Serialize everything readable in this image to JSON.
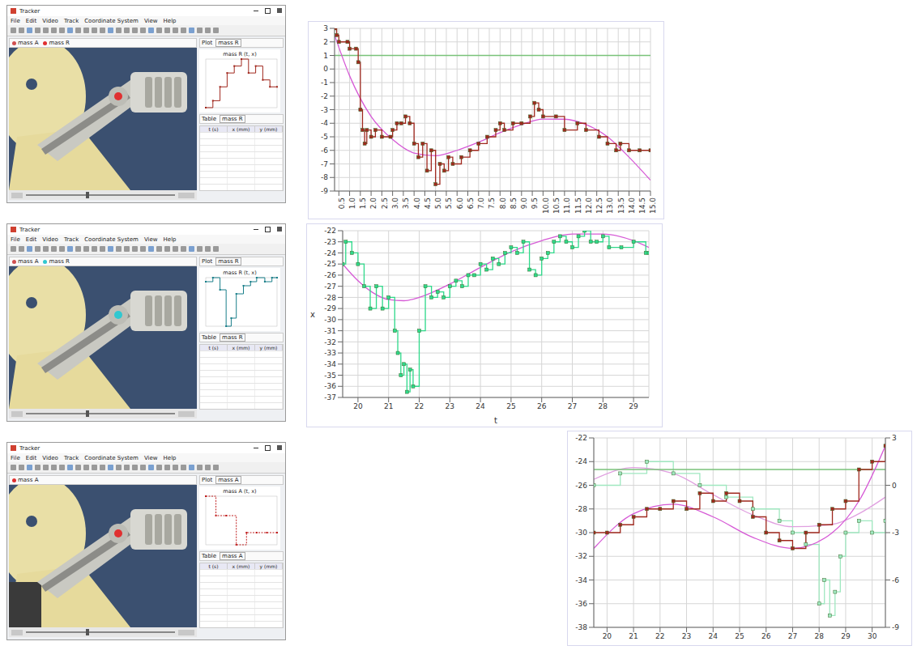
{
  "screenshots": [
    {
      "window_title": "Tracker",
      "menu": [
        "File",
        "Edit",
        "Video",
        "Track",
        "Coordinate System",
        "View",
        "Help"
      ],
      "tracks": [
        "mass A",
        "mass R"
      ],
      "plot_label": "Plot",
      "plot_title": "mass R (t, x)",
      "table_label": "Table",
      "table_track": "mass R",
      "columns": [
        "t (s)",
        "x (mm)",
        "y (mm)"
      ],
      "marker_color": "#e03030",
      "mini_plot": {
        "x": [
          0,
          1,
          2,
          3,
          4,
          5,
          6,
          7,
          8,
          9,
          10
        ],
        "values": [
          -8,
          -7,
          -5,
          -3,
          -2,
          -1,
          -3,
          -2,
          -4,
          -5,
          -5
        ],
        "color": "#a0281e",
        "line_style": "step"
      }
    },
    {
      "window_title": "Tracker",
      "menu": [
        "File",
        "Edit",
        "Video",
        "Track",
        "Coordinate System",
        "View",
        "Help"
      ],
      "tracks": [
        "mass A",
        "mass R"
      ],
      "plot_label": "Plot",
      "plot_title": "mass R (t, x)",
      "table_label": "Table",
      "table_track": "mass R",
      "columns": [
        "t (s)",
        "x (mm)",
        "y (mm)"
      ],
      "marker_color": "#30c8d0",
      "mini_plot": {
        "x": [
          0,
          0.7,
          1.4,
          2,
          2.5,
          3,
          3.7,
          4.4,
          5,
          5.8,
          6.5,
          7
        ],
        "values": [
          -24,
          -23,
          -26,
          -35,
          -33,
          -27,
          -25,
          -24,
          -23,
          -24,
          -23,
          -23
        ],
        "color": "#1a7f8a",
        "line_style": "step"
      }
    },
    {
      "window_title": "Tracker",
      "menu": [
        "File",
        "Edit",
        "Video",
        "Track",
        "Coordinate System",
        "View",
        "Help"
      ],
      "tracks": [
        "mass A"
      ],
      "plot_label": "Plot",
      "plot_title": "mass A (t, x)",
      "table_label": "Table",
      "table_track": "mass A",
      "columns": [
        "t (s)",
        "x (mm)",
        "y (mm)"
      ],
      "marker_color": "#e03030",
      "mini_plot": {
        "x": [
          0,
          0.1,
          0.2,
          0.3,
          0.4,
          0.5,
          0.6,
          0.7
        ],
        "values": [
          1,
          0.6,
          0.6,
          0,
          0.25,
          0.25,
          0.25,
          0.25
        ],
        "color": "#c02020",
        "line_style": "dashed"
      }
    }
  ],
  "chart_data": [
    {
      "type": "line",
      "grid": true,
      "xlim": [
        0.3,
        15
      ],
      "xticks": [
        0.5,
        {
          "value": 1,
          "label": "1.0"
        },
        1.5,
        {
          "value": 2,
          "label": "2.0"
        },
        2.5,
        {
          "value": 3,
          "label": "3.0"
        },
        3.5,
        {
          "value": 4,
          "label": "4.0"
        },
        4.5,
        {
          "value": 5,
          "label": "5.0"
        },
        5.5,
        {
          "value": 6,
          "label": "6.0"
        },
        6.5,
        {
          "value": 7,
          "label": "7.0"
        },
        7.5,
        {
          "value": 8,
          "label": "8.0"
        },
        8.5,
        {
          "value": 9,
          "label": "9.0"
        },
        9.5,
        {
          "value": 10,
          "label": "10.0"
        },
        10.5,
        {
          "value": 11,
          "label": "11.0"
        },
        11.5,
        {
          "value": 12,
          "label": "12.0"
        },
        12.5,
        {
          "value": 13,
          "label": "13.0"
        },
        13.5,
        {
          "value": 14,
          "label": "14.0"
        },
        14.5,
        {
          "value": 15,
          "label": "15.0"
        }
      ],
      "ylim": [
        -9,
        3
      ],
      "yticks": [
        -9,
        -8,
        -7,
        -6,
        -5,
        -4,
        -3,
        -2,
        -1,
        0,
        1,
        2,
        3
      ],
      "series": [
        {
          "color": "#7ac27a",
          "line_style": "solid",
          "marker": "none",
          "x": [
            0.3,
            15
          ],
          "values": [
            1,
            1
          ]
        },
        {
          "color": "#d65ad6",
          "line_style": "smooth",
          "marker": "none",
          "x": [
            0.3,
            1,
            2,
            3,
            4,
            5,
            6,
            7,
            8,
            9,
            10,
            11,
            12,
            13,
            14,
            15
          ],
          "values": [
            2.5,
            -0.5,
            -3.5,
            -5.2,
            -6.2,
            -6.4,
            -6,
            -5.4,
            -4.7,
            -4.1,
            -3.7,
            -3.7,
            -4.1,
            -5,
            -6.5,
            -8.2
          ]
        },
        {
          "color": "#a0281e",
          "line_style": "step",
          "marker": "square",
          "x": [
            0.3,
            0.4,
            0.5,
            0.9,
            1,
            1.3,
            1.4,
            1.5,
            1.6,
            1.7,
            1.8,
            2,
            2.2,
            2.5,
            2.9,
            3,
            3.2,
            3.4,
            3.6,
            3.8,
            4,
            4.2,
            4.4,
            4.6,
            4.8,
            5,
            5.2,
            5.4,
            5.6,
            5.8,
            6.2,
            6.6,
            7,
            7.4,
            7.8,
            8,
            8.2,
            8.6,
            9,
            9.4,
            9.6,
            9.8,
            10,
            10.6,
            11,
            11.6,
            12,
            12.6,
            13,
            13.4,
            13.6,
            14,
            14.5,
            15
          ],
          "values": [
            3,
            2.5,
            2,
            2,
            1.5,
            1.5,
            0.5,
            -3,
            -4.5,
            -5.5,
            -4.5,
            -5,
            -4.5,
            -5,
            -5,
            -4.5,
            -4,
            -4,
            -3.5,
            -4,
            -5.5,
            -6.5,
            -5.5,
            -7.5,
            -6,
            -8.5,
            -7,
            -7.5,
            -6.5,
            -7,
            -6.5,
            -6,
            -5.5,
            -5,
            -4.5,
            -4,
            -4.5,
            -4,
            -4,
            -3.5,
            -2.5,
            -3,
            -3.5,
            -3.5,
            -4.5,
            -4,
            -4.5,
            -5,
            -5.5,
            -6,
            -5.5,
            -6,
            -6,
            -6
          ]
        }
      ]
    },
    {
      "type": "line",
      "grid": true,
      "x_label": "t",
      "y_label": "x",
      "xlim": [
        19.5,
        29.5
      ],
      "xticks": [
        20,
        21,
        22,
        23,
        24,
        25,
        26,
        27,
        28,
        29
      ],
      "ylim": [
        -37,
        -22
      ],
      "yticks": [
        -37,
        -36,
        -35,
        -34,
        -33,
        -32,
        -31,
        -30,
        -29,
        -28,
        -27,
        -26,
        -25,
        -24,
        -23,
        -22
      ],
      "series": [
        {
          "color": "#d65ad6",
          "line_style": "smooth",
          "marker": "none",
          "x": [
            19.5,
            20,
            20.5,
            21,
            21.5,
            22,
            23,
            24,
            25,
            26,
            27,
            28,
            29,
            29.5
          ],
          "values": [
            -25,
            -26.5,
            -27.6,
            -28.2,
            -28.3,
            -28,
            -26.8,
            -25.3,
            -23.9,
            -22.9,
            -22.3,
            -22.3,
            -22.9,
            -23.5
          ]
        },
        {
          "color": "#2ed98a",
          "line_style": "step",
          "marker": "square",
          "x": [
            19.5,
            19.6,
            19.8,
            20,
            20.2,
            20.4,
            20.6,
            20.8,
            21,
            21.2,
            21.3,
            21.4,
            21.5,
            21.6,
            21.7,
            21.8,
            22,
            22.2,
            22.4,
            22.6,
            22.8,
            23,
            23.2,
            23.4,
            23.6,
            23.8,
            24,
            24.2,
            24.4,
            24.6,
            24.8,
            25,
            25.2,
            25.4,
            25.6,
            25.8,
            26,
            26.2,
            26.4,
            26.6,
            26.8,
            27,
            27.2,
            27.4,
            27.6,
            27.8,
            28,
            28.2,
            28.6,
            29,
            29.4,
            29.5
          ],
          "values": [
            -25,
            -23,
            -24,
            -25,
            -27,
            -29,
            -27,
            -29,
            -28,
            -31,
            -33,
            -35,
            -34,
            -36.5,
            -34.5,
            -36,
            -31,
            -27,
            -28,
            -27.5,
            -28,
            -27,
            -26.5,
            -27,
            -26,
            -26,
            -25,
            -25.5,
            -24.5,
            -25,
            -24,
            -23.5,
            -24,
            -23,
            -25.5,
            -26,
            -24.5,
            -24,
            -23,
            -22.5,
            -23,
            -23.5,
            -22.5,
            -22,
            -23,
            -23,
            -22.5,
            -23.5,
            -23.5,
            -23,
            -24,
            -24
          ]
        }
      ]
    },
    {
      "type": "line",
      "grid": true,
      "xlim": [
        19.5,
        30.5
      ],
      "xticks": [
        20,
        21,
        22,
        23,
        24,
        25,
        26,
        27,
        28,
        29,
        30
      ],
      "ylim": [
        -38,
        -22
      ],
      "yticks": [
        -38,
        -36,
        -34,
        -32,
        -30,
        -28,
        -26,
        -24,
        -22
      ],
      "y2lim": [
        -9,
        3
      ],
      "y2ticks": [
        -9,
        -6,
        -3,
        0,
        3
      ],
      "series": [
        {
          "color": "#9fe8c0",
          "line_style": "step",
          "marker": "square",
          "x": [
            19.5,
            20.5,
            21.5,
            22.5,
            23.5,
            24.5,
            25.5,
            26.5,
            27,
            27.5,
            28,
            28.2,
            28.4,
            28.6,
            28.8,
            29,
            29.5,
            30,
            30.5
          ],
          "values": [
            -26,
            -25,
            -24,
            -25,
            -26,
            -27,
            -28,
            -29,
            -30,
            -31,
            -36,
            -34,
            -37,
            -35,
            -32,
            -30,
            -29,
            -30,
            -29
          ]
        },
        {
          "color": "#e0a0e0",
          "line_style": "smooth",
          "marker": "none",
          "x": [
            19.5,
            21,
            22.5,
            24,
            25.5,
            27,
            28.5,
            29.5,
            30.5
          ],
          "values": [
            -25.5,
            -24.5,
            -25,
            -26.8,
            -28.5,
            -29.5,
            -29.3,
            -28.4,
            -27
          ]
        },
        {
          "color": "#7ac27a",
          "line_style": "solid",
          "marker": "none",
          "axis": "y2",
          "x": [
            19.5,
            30.5
          ],
          "values": [
            1,
            1
          ]
        },
        {
          "color": "#d65ad6",
          "line_style": "smooth",
          "marker": "none",
          "axis": "y2",
          "x": [
            19.5,
            21,
            22.5,
            24,
            25.5,
            27,
            28.5,
            29.5,
            30.5
          ],
          "values": [
            -4,
            -1.8,
            -1.2,
            -2,
            -3.3,
            -4,
            -3,
            -1,
            2.5
          ]
        },
        {
          "color": "#a0281e",
          "line_style": "step",
          "marker": "square",
          "axis": "y2",
          "x": [
            19.5,
            20,
            20.5,
            21,
            21.5,
            22,
            22.5,
            23,
            23.5,
            24,
            24.5,
            25,
            25.5,
            26,
            26.5,
            27,
            27.5,
            28,
            28.5,
            29,
            29.5,
            30,
            30.5
          ],
          "values": [
            -3,
            -3,
            -2.5,
            -2,
            -1.5,
            -1.5,
            -1,
            -1.5,
            -0.5,
            -1,
            -0.5,
            -1,
            -2,
            -3,
            -3.5,
            -4,
            -3,
            -2.5,
            -1.5,
            -1,
            1,
            1.5,
            2.5
          ]
        }
      ]
    }
  ]
}
